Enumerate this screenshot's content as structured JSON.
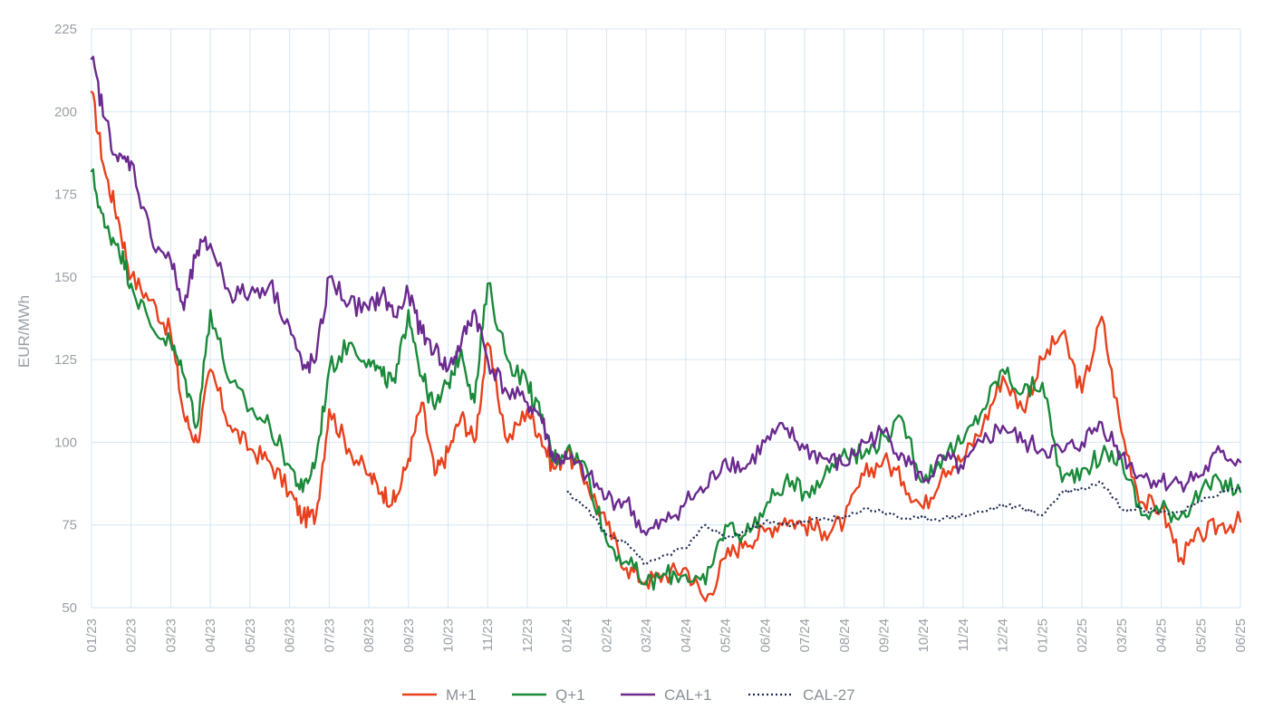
{
  "chart_data": {
    "type": "line",
    "ylabel": "EUR/MWh",
    "xlabel": "",
    "ylim": [
      50,
      225
    ],
    "yticks": [
      50,
      75,
      100,
      125,
      150,
      175,
      200,
      225
    ],
    "grid": true,
    "legend_position": "bottom",
    "x_tick_labels": [
      "01/23",
      "02/23",
      "03/23",
      "04/23",
      "05/23",
      "06/23",
      "07/23",
      "08/23",
      "09/23",
      "10/23",
      "11/23",
      "12/23",
      "01/24",
      "02/24",
      "03/24",
      "04/24",
      "05/24",
      "06/24",
      "07/24",
      "08/24",
      "09/24",
      "10/24",
      "11/24",
      "12/24",
      "01/25",
      "02/25",
      "03/25",
      "04/25",
      "05/25",
      "06/25"
    ],
    "series": [
      {
        "name": "M+1",
        "color": "#e8401c",
        "style": "solid",
        "x": [
          "01/23",
          "01/23",
          "01/23",
          "02/23",
          "02/23",
          "03/23",
          "03/23",
          "03/23",
          "04/23",
          "04/23",
          "05/23",
          "05/23",
          "06/23",
          "06/23",
          "06/23",
          "07/23",
          "07/23",
          "08/23",
          "08/23",
          "08/23",
          "09/23",
          "09/23",
          "09/23",
          "10/23",
          "10/23",
          "10/23",
          "11/23",
          "11/23",
          "12/23",
          "12/23",
          "12/23",
          "01/24",
          "01/24",
          "02/24",
          "02/24",
          "03/24",
          "03/24",
          "04/24",
          "04/24",
          "05/24",
          "05/24",
          "06/24",
          "06/24",
          "07/24",
          "07/24",
          "08/24",
          "08/24",
          "09/24",
          "09/24",
          "10/24",
          "10/24",
          "11/24",
          "11/24",
          "12/24",
          "12/24",
          "01/25",
          "01/25",
          "02/25",
          "02/25",
          "03/25",
          "03/25",
          "04/25",
          "04/25",
          "05/25",
          "05/25",
          "06/25"
        ],
        "values": [
          206,
          182,
          168,
          150,
          143,
          133,
          108,
          100,
          122,
          105,
          98,
          94,
          85,
          77,
          78,
          110,
          98,
          90,
          85,
          82,
          95,
          112,
          90,
          97,
          108,
          100,
          130,
          100,
          110,
          102,
          92,
          97,
          88,
          75,
          62,
          58,
          60,
          62,
          52,
          65,
          70,
          73,
          77,
          75,
          73,
          76,
          90,
          95,
          88,
          80,
          92,
          95,
          105,
          120,
          110,
          125,
          133,
          115,
          138,
          103,
          82,
          80,
          65,
          72,
          75,
          76
        ]
      },
      {
        "name": "Q+1",
        "color": "#1a8a3a",
        "style": "solid",
        "x": [
          "01/23",
          "01/23",
          "01/23",
          "02/23",
          "02/23",
          "03/23",
          "03/23",
          "03/23",
          "04/23",
          "04/23",
          "05/23",
          "05/23",
          "06/23",
          "06/23",
          "06/23",
          "07/23",
          "07/23",
          "08/23",
          "08/23",
          "08/23",
          "09/23",
          "09/23",
          "09/23",
          "10/23",
          "10/23",
          "10/23",
          "11/23",
          "11/23",
          "12/23",
          "12/23",
          "12/23",
          "01/24",
          "01/24",
          "02/24",
          "02/24",
          "03/24",
          "03/24",
          "04/24",
          "04/24",
          "05/24",
          "05/24",
          "06/24",
          "06/24",
          "07/24",
          "07/24",
          "08/24",
          "08/24",
          "09/24",
          "09/24",
          "10/24",
          "10/24",
          "11/24",
          "11/24",
          "12/24",
          "12/24",
          "01/25",
          "01/25",
          "02/25",
          "02/25",
          "03/25",
          "03/25",
          "04/25",
          "04/25",
          "05/25",
          "05/25",
          "06/25"
        ],
        "values": [
          182,
          165,
          160,
          148,
          135,
          130,
          120,
          105,
          140,
          118,
          110,
          105,
          93,
          85,
          95,
          122,
          130,
          125,
          120,
          118,
          140,
          120,
          110,
          118,
          128,
          112,
          148,
          125,
          118,
          108,
          95,
          98,
          92,
          70,
          64,
          57,
          60,
          60,
          57,
          75,
          72,
          80,
          88,
          85,
          90,
          98,
          96,
          102,
          106,
          88,
          96,
          100,
          110,
          122,
          115,
          118,
          88,
          92,
          96,
          95,
          78,
          80,
          78,
          85,
          88,
          85
        ]
      },
      {
        "name": "CAL+1",
        "color": "#6a2a8e",
        "style": "solid",
        "x": [
          "01/23",
          "01/23",
          "01/23",
          "02/23",
          "02/23",
          "03/23",
          "03/23",
          "03/23",
          "04/23",
          "04/23",
          "05/23",
          "05/23",
          "06/23",
          "06/23",
          "06/23",
          "07/23",
          "07/23",
          "08/23",
          "08/23",
          "08/23",
          "09/23",
          "09/23",
          "09/23",
          "10/23",
          "10/23",
          "10/23",
          "11/23",
          "11/23",
          "12/23",
          "12/23",
          "12/23",
          "01/24",
          "01/24",
          "02/24",
          "02/24",
          "03/24",
          "03/24",
          "04/24",
          "04/24",
          "05/24",
          "05/24",
          "06/24",
          "06/24",
          "07/24",
          "07/24",
          "08/24",
          "08/24",
          "09/24",
          "09/24",
          "10/24",
          "10/24",
          "11/24",
          "11/24",
          "12/24",
          "12/24",
          "01/25",
          "01/25",
          "02/25",
          "02/25",
          "03/25",
          "03/25",
          "04/25",
          "04/25",
          "05/25",
          "05/25",
          "06/25"
        ],
        "values": [
          216,
          198,
          185,
          185,
          162,
          155,
          140,
          158,
          160,
          145,
          145,
          148,
          135,
          122,
          125,
          150,
          142,
          140,
          145,
          138,
          145,
          133,
          128,
          122,
          130,
          140,
          125,
          115,
          112,
          108,
          95,
          95,
          90,
          83,
          82,
          72,
          76,
          82,
          86,
          95,
          92,
          100,
          104,
          98,
          95,
          93,
          100,
          103,
          96,
          88,
          95,
          92,
          100,
          105,
          100,
          98,
          97,
          100,
          106,
          96,
          90,
          88,
          88,
          90,
          97,
          94
        ]
      },
      {
        "name": "CAL-27",
        "color": "#1f2a52",
        "style": "dotted",
        "x": [
          "01/24",
          "01/24",
          "02/24",
          "02/24",
          "03/24",
          "03/24",
          "04/24",
          "04/24",
          "05/24",
          "05/24",
          "06/24",
          "06/24",
          "07/24",
          "07/24",
          "08/24",
          "08/24",
          "09/24",
          "09/24",
          "10/24",
          "10/24",
          "11/24",
          "11/24",
          "12/24",
          "12/24",
          "01/25",
          "01/25",
          "02/25",
          "02/25",
          "03/25",
          "03/25",
          "04/25",
          "04/25",
          "05/25",
          "05/25",
          "06/25"
        ],
        "values": [
          85,
          80,
          72,
          70,
          63,
          66,
          68,
          75,
          71,
          73,
          76,
          75,
          76,
          77,
          77,
          80,
          79,
          77,
          77,
          77,
          78,
          79,
          81,
          80,
          78,
          85,
          86,
          88,
          80,
          80,
          79,
          79,
          82,
          85,
          86
        ]
      }
    ]
  },
  "legend": {
    "items": [
      {
        "label": "M+1"
      },
      {
        "label": "Q+1"
      },
      {
        "label": "CAL+1"
      },
      {
        "label": "CAL-27"
      }
    ]
  }
}
